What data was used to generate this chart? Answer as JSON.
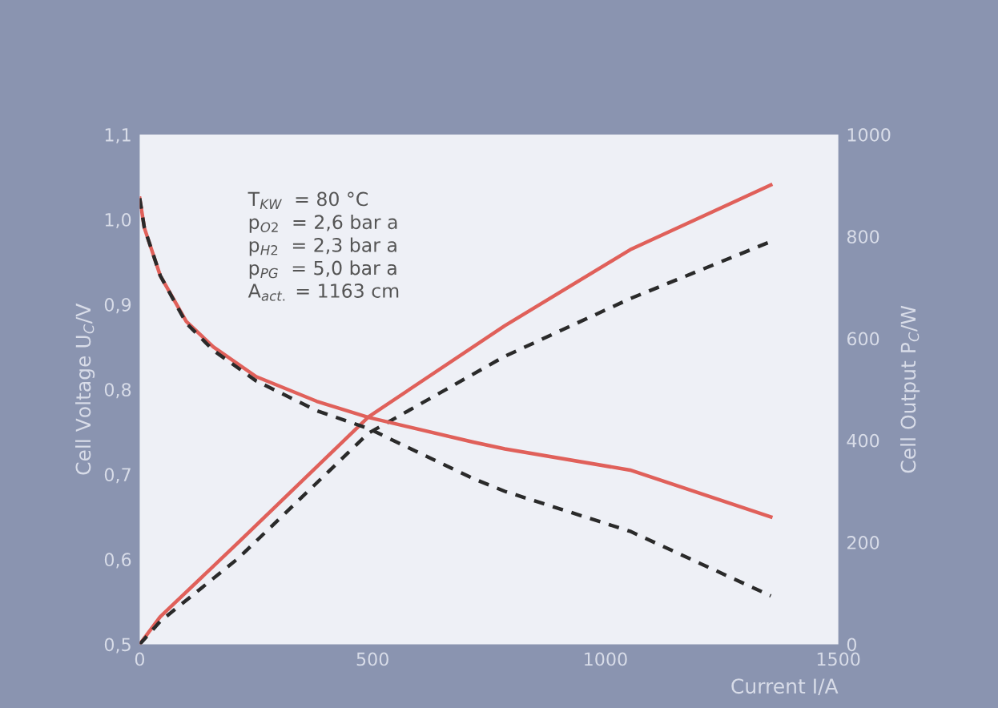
{
  "chart_data": {
    "type": "line",
    "xlabel": "Current I/A",
    "ylabel": "Cell Voltage U$_{C}$/V",
    "y2label": "Cell Output P$_{C}$/W",
    "xlim": [
      0,
      1500
    ],
    "xticks": [
      0,
      500,
      1000,
      1500
    ],
    "ylim": [
      0.5,
      1.1
    ],
    "yticks": [
      {
        "value": 0.5,
        "label": "0,5"
      },
      {
        "value": 0.6,
        "label": "0,6"
      },
      {
        "value": 0.7,
        "label": "0,7"
      },
      {
        "value": 0.8,
        "label": "0,8"
      },
      {
        "value": 0.9,
        "label": "0,9"
      },
      {
        "value": 1.0,
        "label": "1,0"
      },
      {
        "value": 1.1,
        "label": "1,1"
      }
    ],
    "y2lim": [
      0,
      1000
    ],
    "y2ticks": [
      0,
      200,
      400,
      600,
      800,
      1000
    ],
    "grid": false,
    "legend": false,
    "annotations": [
      "T$_{KW}$  = 80 °C",
      "p$_{O2}$  = 2,6 bar a",
      "p$_{H2}$  = 2,3 bar a",
      "p$_{PG}$  = 5,0 bar a",
      "A$_{act.}$ = 1163 cm"
    ],
    "series": [
      {
        "color": "#e0605a",
        "line_style": "solid",
        "x": [
          0,
          10,
          44,
          100,
          158,
          250,
          380,
          491,
          716,
          784,
          1053,
          1355
        ],
        "values": [
          1.025,
          0.99,
          0.934,
          0.88,
          0.85,
          0.815,
          0.786,
          0.767,
          0.738,
          0.73,
          0.705,
          0.65
        ]
      },
      {
        "color": "#2a2a2a",
        "line_style": "dashed",
        "x": [
          0,
          10,
          44,
          100,
          158,
          250,
          380,
          491,
          716,
          784,
          1053,
          1355
        ],
        "values": [
          1.025,
          0.99,
          0.934,
          0.878,
          0.846,
          0.81,
          0.775,
          0.754,
          0.695,
          0.68,
          0.633,
          0.557
        ]
      },
      {
        "color": "#e0605a",
        "line_style": "solid",
        "axis": "y2",
        "x": [
          0,
          44,
          212,
          491,
          784,
          1053,
          1355
        ],
        "values": [
          0,
          54,
          200,
          446,
          625,
          774,
          901
        ]
      },
      {
        "color": "#2a2a2a",
        "line_style": "dashed",
        "axis": "y2",
        "x": [
          0,
          44,
          212,
          491,
          784,
          1053,
          1355
        ],
        "values": [
          0,
          45,
          169,
          414,
          565,
          678,
          790
        ]
      }
    ]
  }
}
